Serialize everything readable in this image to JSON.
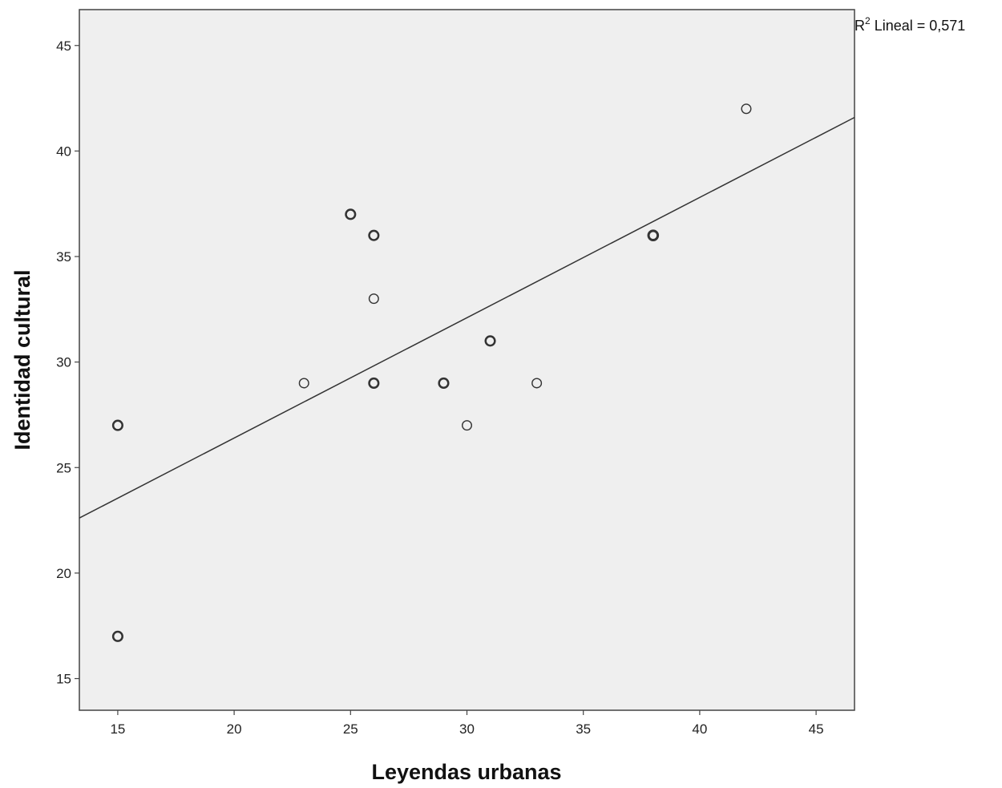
{
  "chart_data": {
    "type": "scatter",
    "title": "",
    "xlabel": "Leyendas urbanas",
    "ylabel": "Identidad cultural",
    "xlim": [
      13.35,
      46.65
    ],
    "ylim": [
      13.5,
      46.7
    ],
    "xticks": [
      15,
      20,
      25,
      30,
      35,
      40,
      45
    ],
    "yticks": [
      15,
      20,
      25,
      30,
      35,
      40,
      45
    ],
    "xtick_labels": [
      "15",
      "20",
      "25",
      "30",
      "35",
      "40",
      "45"
    ],
    "ytick_labels": [
      "15",
      "20",
      "25",
      "30",
      "35",
      "40",
      "45"
    ],
    "grid": false,
    "series": [
      {
        "points": [
          {
            "x": 15,
            "y": 27,
            "count": 2
          },
          {
            "x": 15,
            "y": 17,
            "count": 2
          },
          {
            "x": 23,
            "y": 29,
            "count": 1
          },
          {
            "x": 25,
            "y": 37,
            "count": 2
          },
          {
            "x": 26,
            "y": 36,
            "count": 2
          },
          {
            "x": 26,
            "y": 33,
            "count": 1
          },
          {
            "x": 26,
            "y": 29,
            "count": 2
          },
          {
            "x": 29,
            "y": 29,
            "count": 2
          },
          {
            "x": 30,
            "y": 27,
            "count": 1
          },
          {
            "x": 31,
            "y": 31,
            "count": 2
          },
          {
            "x": 33,
            "y": 29,
            "count": 1
          },
          {
            "x": 38,
            "y": 36,
            "count": 3
          },
          {
            "x": 42,
            "y": 42,
            "count": 1
          }
        ]
      }
    ],
    "fit_line": {
      "type": "linear",
      "intercept": 15.0,
      "slope": 0.57,
      "label_prefix": "R",
      "label_sup": "2",
      "label_suffix": " Lineal = 0,571",
      "label_position": "top-right"
    },
    "colors": {
      "plot_background": "#efefef",
      "frame": "#444444",
      "marker": "#333333",
      "line": "#333333"
    }
  }
}
